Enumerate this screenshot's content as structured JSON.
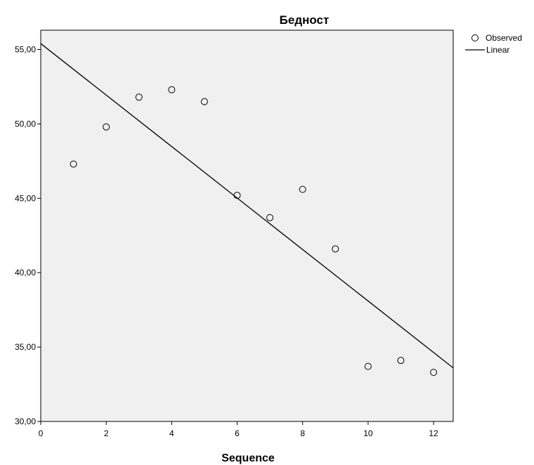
{
  "chart_data": {
    "type": "scatter",
    "title": "Бедност",
    "xlabel": "Sequence",
    "ylabel": "",
    "xlim": [
      0,
      12.6
    ],
    "ylim": [
      30,
      56.3
    ],
    "x_ticks": [
      0,
      2,
      4,
      6,
      8,
      10,
      12
    ],
    "x_tick_labels": [
      "0",
      "2",
      "4",
      "6",
      "8",
      "10",
      "12"
    ],
    "y_ticks": [
      30,
      35,
      40,
      45,
      50,
      55
    ],
    "y_tick_labels": [
      "30,00",
      "35,00",
      "40,00",
      "45,00",
      "50,00",
      "55,00"
    ],
    "grid": false,
    "legend_position": "top-right-outside",
    "plot_background": "#f0f0f0",
    "series": [
      {
        "name": "Observed",
        "kind": "scatter",
        "marker": "open-circle",
        "x": [
          1,
          2,
          3,
          4,
          5,
          6,
          7,
          8,
          9,
          10,
          11,
          12
        ],
        "y": [
          47.3,
          49.8,
          51.8,
          52.3,
          51.5,
          45.2,
          43.7,
          45.6,
          41.6,
          33.7,
          34.1,
          33.3
        ]
      },
      {
        "name": "Linear",
        "kind": "line",
        "x": [
          0,
          12.6
        ],
        "y": [
          55.4,
          33.6
        ]
      }
    ]
  }
}
